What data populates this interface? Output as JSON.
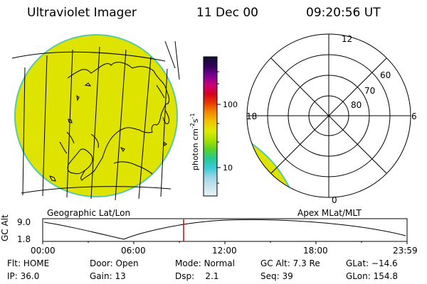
{
  "header": {
    "title": "Ultraviolet Imager",
    "date": "11 Dec 00",
    "time": "09:20:56 UT"
  },
  "colors": {
    "aurora_fill": "#dfe300",
    "map_lines": "#000000",
    "cursor_line": "#e00000"
  },
  "colorbar": {
    "unit_label": "photon cm",
    "unit_sup1": "-2",
    "unit_mid": "s",
    "unit_sup2": "-1",
    "tick_100": "100",
    "tick_10": "10",
    "stops": [
      "#e8f4f8",
      "#c8e4ee",
      "#9ed6e6",
      "#3ccad8",
      "#28c896",
      "#54d22c",
      "#a8e000",
      "#ddec00",
      "#f2c400",
      "#f28a00",
      "#e83c00",
      "#d80020",
      "#c8007e",
      "#7a0090",
      "#30005c",
      "#101030"
    ]
  },
  "polar": {
    "labels": {
      "top": "12",
      "bottom": "0",
      "left": "18",
      "right": "6",
      "lat60": "60",
      "lat70": "70",
      "lat80": "80"
    }
  },
  "captions": {
    "left": "Geographic Lat/Lon",
    "right": "Apex MLat/MLT"
  },
  "timeline": {
    "ylabel": "GC Alt",
    "ytick_high": "9.0",
    "ytick_low": "1.8",
    "xticks": [
      "00:00",
      "06:00",
      "12:00",
      "18:00",
      "23:59"
    ]
  },
  "info": {
    "flt_label": "Flt:",
    "flt_value": "HOME",
    "door_label": "Door:",
    "door_value": "Open",
    "mode_label": "Mode:",
    "mode_value": "Normal",
    "gcalt_label": "GC Alt:",
    "gcalt_value": "7.3 Re",
    "glat_label": "GLat:",
    "glat_value": "−14.6",
    "ip_label": "IP:",
    "ip_value": "36.0",
    "gain_label": "Gain:",
    "gain_value": "13",
    "dsp_label": "Dsp:",
    "dsp_value": "2.1",
    "seq_label": "Seq:",
    "seq_value": "39",
    "glon_label": "GLon:",
    "glon_value": "154.8"
  }
}
